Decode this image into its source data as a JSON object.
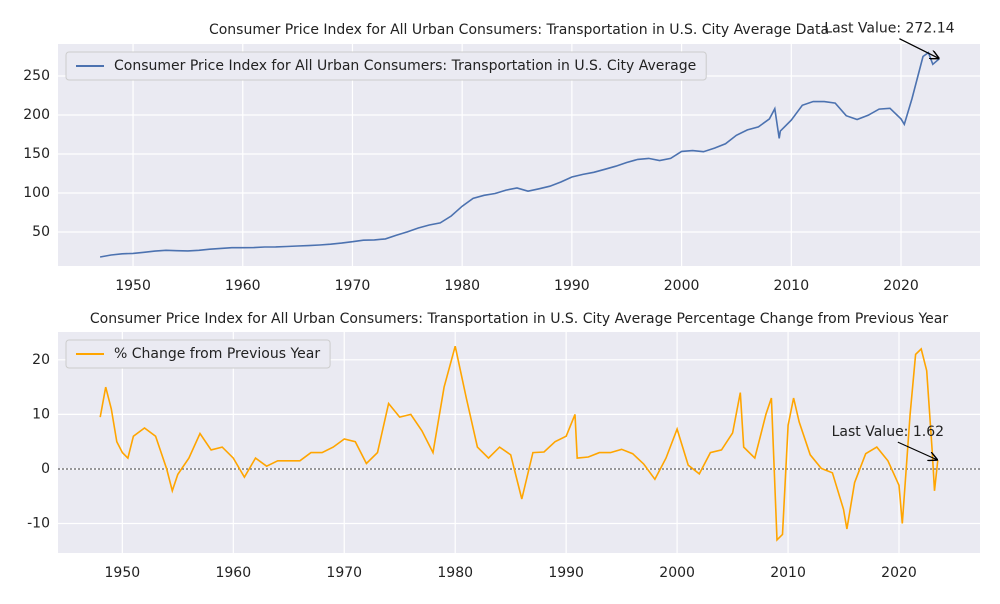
{
  "chart_data": [
    {
      "type": "line",
      "title": "Consumer Price Index for All Urban Consumers: Transportation in U.S. City Average Data",
      "x": [
        1947,
        1948,
        1949,
        1950,
        1951,
        1952,
        1953,
        1954,
        1955,
        1956,
        1957,
        1958,
        1959,
        1960,
        1961,
        1962,
        1963,
        1964,
        1965,
        1966,
        1967,
        1968,
        1969,
        1970,
        1971,
        1972,
        1973,
        1974,
        1975,
        1976,
        1977,
        1978,
        1979,
        1980,
        1981,
        1982,
        1983,
        1984,
        1985,
        1986,
        1987,
        1988,
        1989,
        1990,
        1991,
        1992,
        1993,
        1994,
        1995,
        1996,
        1997,
        1998,
        1999,
        2000,
        2001,
        2002,
        2003,
        2004,
        2005,
        2006,
        2007,
        2008,
        2008.5,
        2008.9,
        2009,
        2010,
        2011,
        2012,
        2013,
        2014,
        2015,
        2016,
        2017,
        2018,
        2019,
        2020,
        2020.3,
        2021,
        2022,
        2022.5,
        2022.9,
        2023.5
      ],
      "series": [
        {
          "name": "Consumer Price Index for All Urban Consumers: Transportation in U.S. City Average",
          "color": "#4c72b0",
          "values": [
            18,
            20.5,
            22,
            22.5,
            24,
            25.5,
            26.5,
            26,
            25.8,
            26.5,
            28,
            29,
            29.8,
            29.8,
            30,
            30.8,
            30.9,
            31.4,
            32,
            32.5,
            33.3,
            34.3,
            35.7,
            37.5,
            39.5,
            39.9,
            41.2,
            45.8,
            50.1,
            55.1,
            59,
            61.7,
            70.5,
            83.1,
            93.2,
            97,
            99.3,
            103.7,
            106.4,
            102.3,
            105.4,
            108.7,
            114.1,
            120.5,
            123.8,
            126.5,
            130.4,
            134.3,
            139.1,
            143,
            144.3,
            141.6,
            144.4,
            153.3,
            154.3,
            152.9,
            157.6,
            163.1,
            173.9,
            180.9,
            184.7,
            195,
            208,
            170,
            179.3,
            193.4,
            212.4,
            217.3,
            217.2,
            215.2,
            199.1,
            194.2,
            199.6,
            207.6,
            208.6,
            195,
            188,
            221,
            275,
            280,
            265,
            272.14
          ]
        }
      ],
      "annotation": "Last Value: 272.14",
      "xlim": [
        1943.16,
        2027.2
      ],
      "ylim": [
        6.4,
        291
      ],
      "xticks": [
        1950,
        1960,
        1970,
        1980,
        1990,
        2000,
        2010,
        2020
      ],
      "yticks": [
        50,
        100,
        150,
        200,
        250
      ],
      "grid": true,
      "legend": "upper left"
    },
    {
      "type": "line",
      "title": "Consumer Price Index for All Urban Consumers: Transportation in U.S. City Average Percentage Change from Previous Year",
      "x": [
        1948,
        1948.5,
        1949,
        1949.5,
        1950,
        1950.5,
        1951,
        1952,
        1953,
        1954,
        1954.5,
        1955,
        1956,
        1957,
        1958,
        1959,
        1960,
        1961,
        1962,
        1963,
        1964,
        1965,
        1966,
        1967,
        1968,
        1969,
        1970,
        1971,
        1972,
        1973,
        1974,
        1975,
        1976,
        1977,
        1978,
        1979,
        1980,
        1981,
        1982,
        1983,
        1984,
        1985,
        1986,
        1987,
        1988,
        1989,
        1990,
        1990.8,
        1991,
        1992,
        1993,
        1994,
        1995,
        1996,
        1997,
        1998,
        1999,
        2000,
        2001,
        2002,
        2003,
        2004,
        2005,
        2005.7,
        2006,
        2007,
        2008,
        2008.5,
        2009,
        2009.5,
        2010,
        2010.5,
        2011,
        2012,
        2013,
        2014,
        2015,
        2015.3,
        2016,
        2017,
        2018,
        2019,
        2020,
        2020.3,
        2021,
        2021.5,
        2022,
        2022.5,
        2023,
        2023.2,
        2023.5
      ],
      "series": [
        {
          "name": "% Change from Previous Year",
          "color": "#ffa500",
          "values": [
            9.5,
            15,
            11,
            5,
            3,
            2,
            6,
            7.5,
            6,
            0,
            -4,
            -1,
            2,
            6.5,
            3.5,
            4,
            2,
            -1.5,
            2,
            0.5,
            1.5,
            1.5,
            1.5,
            3,
            3,
            4,
            5.5,
            5,
            1,
            3,
            12,
            9.5,
            10,
            7,
            3,
            15,
            22.5,
            13,
            4,
            2,
            4,
            2.6,
            -5.5,
            3,
            3.1,
            5,
            6,
            10,
            2,
            2.2,
            3,
            3,
            3.6,
            2.8,
            0.9,
            -1.9,
            2,
            7.3,
            0.7,
            -0.9,
            3,
            3.5,
            6.6,
            14,
            4,
            2,
            10,
            13,
            -13,
            -12,
            8,
            13,
            8.6,
            2.6,
            0.1,
            -0.7,
            -7.4,
            -11,
            -2.5,
            2.8,
            4,
            1.5,
            -3,
            -10,
            10,
            21,
            22,
            18,
            3,
            -4,
            1.62
          ]
        }
      ],
      "annotation": "Last Value: 1.62",
      "hline": 0,
      "xlim": [
        1944.2,
        2027.3
      ],
      "ylim": [
        -15.4,
        25.1
      ],
      "xticks": [
        1950,
        1960,
        1970,
        1980,
        1990,
        2000,
        2010,
        2020
      ],
      "yticks": [
        -10,
        0,
        10,
        20
      ],
      "grid": true,
      "legend": "upper left"
    }
  ]
}
